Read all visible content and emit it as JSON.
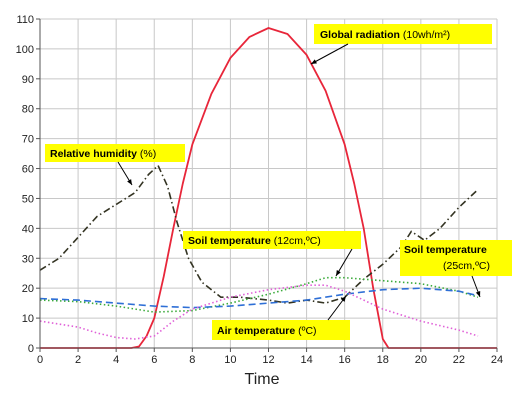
{
  "chart_data": {
    "type": "line",
    "title": "",
    "xlabel": "Time",
    "ylabel": "",
    "xlim": [
      0,
      24
    ],
    "ylim": [
      0,
      110
    ],
    "xticks": [
      0,
      2,
      4,
      6,
      8,
      10,
      12,
      14,
      16,
      18,
      20,
      22,
      24
    ],
    "yticks": [
      0,
      10,
      20,
      30,
      40,
      50,
      60,
      70,
      80,
      90,
      100,
      110
    ],
    "grid": true,
    "legend": "none",
    "series": [
      {
        "key": "global_radiation",
        "color": "#e8263a",
        "dash": "solid",
        "points": [
          [
            0,
            0
          ],
          [
            4.8,
            0
          ],
          [
            5.2,
            0.5
          ],
          [
            5.6,
            4
          ],
          [
            6,
            10
          ],
          [
            6.5,
            24
          ],
          [
            7,
            40
          ],
          [
            7.5,
            55
          ],
          [
            8,
            68
          ],
          [
            9,
            85
          ],
          [
            10,
            97
          ],
          [
            11,
            104
          ],
          [
            12,
            107
          ],
          [
            13,
            105
          ],
          [
            14,
            98
          ],
          [
            15,
            86
          ],
          [
            16,
            68
          ],
          [
            16.5,
            55
          ],
          [
            17,
            40
          ],
          [
            17.5,
            20
          ],
          [
            18,
            3
          ],
          [
            18.3,
            0
          ],
          [
            24,
            0
          ]
        ]
      },
      {
        "key": "relative_humidity",
        "color": "#333322",
        "dash": "dashdot",
        "points": [
          [
            0,
            26
          ],
          [
            1,
            30
          ],
          [
            2,
            37
          ],
          [
            3,
            44
          ],
          [
            4,
            48
          ],
          [
            5,
            52
          ],
          [
            5.7,
            58
          ],
          [
            6.2,
            61
          ],
          [
            6.7,
            54
          ],
          [
            7.2,
            42
          ],
          [
            7.8,
            30
          ],
          [
            8.5,
            22
          ],
          [
            9.5,
            17
          ],
          [
            10.5,
            17
          ],
          [
            12,
            16
          ],
          [
            13,
            15
          ],
          [
            14,
            16
          ],
          [
            15,
            15
          ],
          [
            16,
            17
          ],
          [
            17,
            23
          ],
          [
            18,
            28
          ],
          [
            19,
            34
          ],
          [
            19.5,
            39
          ],
          [
            20.2,
            36
          ],
          [
            21,
            40
          ],
          [
            22,
            47
          ],
          [
            23,
            53
          ]
        ]
      },
      {
        "key": "soil_temperature_12cm",
        "color": "#3aaa3a",
        "dash": "dotted",
        "points": [
          [
            0,
            16
          ],
          [
            2,
            15.5
          ],
          [
            4,
            14
          ],
          [
            6,
            12
          ],
          [
            8,
            12.5
          ],
          [
            10,
            15
          ],
          [
            12,
            18
          ],
          [
            14,
            21.5
          ],
          [
            15,
            23.5
          ],
          [
            16,
            23.5
          ],
          [
            17,
            23
          ],
          [
            18,
            22.5
          ],
          [
            20,
            21.5
          ],
          [
            22,
            19
          ],
          [
            23,
            17
          ]
        ]
      },
      {
        "key": "soil_temperature_25cm",
        "color": "#2e6fd6",
        "dash": "dashed",
        "points": [
          [
            0,
            16.5
          ],
          [
            2,
            16
          ],
          [
            4,
            15
          ],
          [
            6,
            14
          ],
          [
            8,
            13.5
          ],
          [
            10,
            14
          ],
          [
            12,
            15
          ],
          [
            14,
            16
          ],
          [
            16,
            18
          ],
          [
            18,
            19.5
          ],
          [
            20,
            20
          ],
          [
            22,
            19
          ],
          [
            23,
            17.5
          ]
        ]
      },
      {
        "key": "air_temperature",
        "color": "#e060d8",
        "dash": "dotted",
        "points": [
          [
            0,
            9
          ],
          [
            1,
            8
          ],
          [
            2,
            7
          ],
          [
            3,
            5
          ],
          [
            4,
            3.5
          ],
          [
            5,
            3
          ],
          [
            6,
            4
          ],
          [
            7,
            9
          ],
          [
            8,
            13
          ],
          [
            10,
            17
          ],
          [
            12,
            19.5
          ],
          [
            14,
            21
          ],
          [
            15,
            21
          ],
          [
            16,
            19
          ],
          [
            17,
            16
          ],
          [
            18,
            13
          ],
          [
            20,
            9
          ],
          [
            22,
            6
          ],
          [
            23,
            4
          ]
        ]
      }
    ],
    "annotations": [
      {
        "key": "global_radiation",
        "bold": "Global radiation",
        "rest": " (10wh/m²)"
      },
      {
        "key": "relative_humidity",
        "bold": "Relative humidity",
        "rest": " (%)"
      },
      {
        "key": "soil_temperature_12cm",
        "bold": "Soil temperature",
        "rest": " (12cm,ºC)"
      },
      {
        "key": "soil_temperature_25cm",
        "bold": "Soil temperature",
        "rest": "(25cm,ºC)"
      },
      {
        "key": "air_temperature",
        "bold": "Air temperature",
        "rest": " (ºC)"
      }
    ]
  }
}
